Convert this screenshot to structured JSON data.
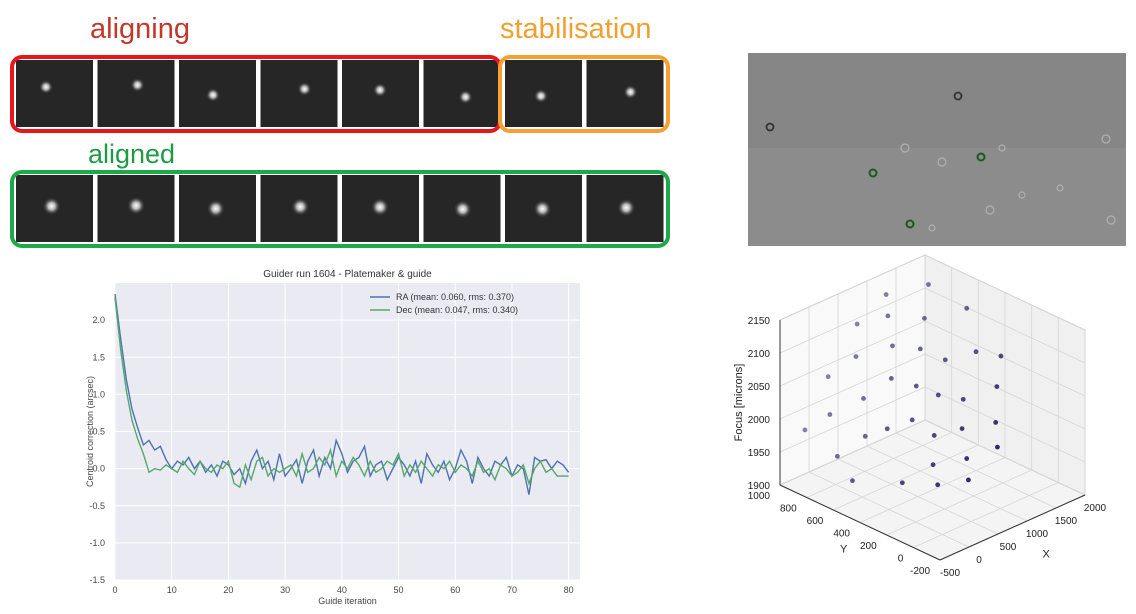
{
  "annotations": [
    "aligning",
    "stabilisation",
    "aligned"
  ],
  "chart_data": [
    {
      "type": "line",
      "title": "Guider run 1604 - Platemaker & guide",
      "xlabel": "Guide iteration",
      "ylabel": "Centroid correction (arcsec)",
      "x": [
        0,
        1,
        2,
        3,
        4,
        5,
        6,
        7,
        8,
        9,
        10,
        11,
        12,
        13,
        14,
        15,
        16,
        17,
        18,
        19,
        20,
        21,
        22,
        23,
        24,
        25,
        26,
        27,
        28,
        29,
        30,
        31,
        32,
        33,
        34,
        35,
        36,
        37,
        38,
        39,
        40,
        41,
        42,
        43,
        44,
        45,
        46,
        47,
        48,
        49,
        50,
        51,
        52,
        53,
        54,
        55,
        56,
        57,
        58,
        59,
        60,
        61,
        62,
        63,
        64,
        65,
        66,
        67,
        68,
        69,
        70,
        71,
        72,
        73,
        74,
        75,
        76,
        77,
        78,
        79,
        80
      ],
      "series": [
        {
          "name": "RA (mean: 0.060, rms: 0.370)",
          "color": "#4c72b0",
          "values": [
            2.35,
            1.75,
            1.2,
            0.8,
            0.55,
            0.32,
            0.38,
            0.25,
            0.3,
            0.12,
            0.0,
            0.1,
            0.05,
            0.15,
            0.0,
            0.1,
            -0.05,
            0.05,
            -0.1,
            0.1,
            0.05,
            -0.08,
            0.0,
            -0.2,
            0.1,
            0.25,
            0.0,
            0.1,
            -0.15,
            0.2,
            -0.1,
            0.0,
            0.12,
            -0.2,
            0.1,
            0.25,
            -0.1,
            0.15,
            0.0,
            0.38,
            0.2,
            -0.05,
            0.1,
            0.15,
            0.3,
            -0.1,
            0.05,
            0.1,
            -0.15,
            0.0,
            0.15,
            0.05,
            -0.1,
            0.1,
            -0.2,
            0.2,
            0.05,
            -0.05,
            0.1,
            -0.15,
            0.0,
            0.25,
            0.1,
            -0.2,
            0.15,
            0.0,
            -0.1,
            0.1,
            0.05,
            0.15,
            -0.1,
            0.05,
            0.0,
            -0.35,
            0.15,
            0.1,
            0.12,
            0.0,
            0.1,
            0.05,
            -0.05
          ]
        },
        {
          "name": "Dec (mean: 0.047, rms: 0.340)",
          "color": "#55a868",
          "values": [
            2.3,
            1.6,
            1.05,
            0.65,
            0.4,
            0.2,
            -0.05,
            0.0,
            -0.02,
            0.05,
            0.0,
            -0.05,
            0.1,
            0.0,
            -0.08,
            0.1,
            0.0,
            -0.05,
            0.05,
            0.0,
            0.1,
            -0.2,
            -0.25,
            0.05,
            -0.15,
            0.1,
            0.15,
            -0.1,
            0.0,
            -0.05,
            0.0,
            0.05,
            -0.1,
            0.2,
            -0.05,
            0.0,
            0.15,
            0.05,
            0.25,
            -0.1,
            0.1,
            0.0,
            0.15,
            0.05,
            -0.1,
            0.1,
            -0.05,
            0.0,
            0.1,
            0.05,
            0.2,
            -0.1,
            0.05,
            -0.05,
            0.1,
            0.0,
            -0.1,
            0.05,
            0.0,
            0.1,
            -0.05,
            0.05,
            0.0,
            -0.1,
            0.1,
            -0.05,
            0.0,
            -0.15,
            0.05,
            0.0,
            -0.1,
            -0.05,
            0.05,
            -0.2,
            0.0,
            0.1,
            -0.05,
            0.0,
            -0.1,
            -0.1,
            -0.1
          ]
        }
      ],
      "xlim": [
        0,
        82
      ],
      "ylim": [
        -1.5,
        2.5
      ],
      "xticks": [
        0,
        10,
        20,
        30,
        40,
        50,
        60,
        70,
        80
      ],
      "yticks": [
        -1.5,
        {
          "value": -1,
          "label": "-1.0"
        },
        -0.5,
        {
          "value": 0,
          "label": "0.0"
        },
        0.5,
        {
          "value": 1,
          "label": "1.0"
        },
        1.5,
        {
          "value": 2,
          "label": "2.0"
        }
      ],
      "grid": true,
      "legend": "upper right"
    },
    {
      "type": "scatter3d",
      "xlabel": "X",
      "ylabel": "Y",
      "zlabel": "Focus [microns]",
      "color": "#1b1b5e",
      "x": [
        -300,
        -200,
        -100,
        0,
        50,
        100,
        150,
        200,
        250,
        300,
        350,
        400,
        450,
        500,
        550,
        600,
        650,
        700,
        750,
        800,
        850,
        900,
        950,
        1000,
        1050,
        1100,
        1150,
        1200,
        1300,
        1400,
        1500,
        1600,
        1700,
        1800,
        -400
      ],
      "y": [
        900,
        700,
        800,
        300,
        600,
        900,
        100,
        500,
        700,
        200,
        800,
        400,
        0,
        600,
        300,
        900,
        100,
        500,
        700,
        200,
        400,
        800,
        0,
        600,
        300,
        900,
        100,
        500,
        700,
        200,
        400,
        800,
        300,
        600,
        500
      ],
      "z": [
        1985,
        1960,
        2010,
        1950,
        1990,
        2050,
        1960,
        2005,
        2030,
        1975,
        2080,
        2020,
        1965,
        2060,
        2000,
        2110,
        1980,
        2050,
        2090,
        2010,
        2040,
        2120,
        1995,
        2085,
        2035,
        2135,
        2015,
        2070,
        2110,
        2050,
        2080,
        2140,
        2075,
        2115,
        1950
      ],
      "xlim": [
        -500,
        2000
      ],
      "ylim": [
        -200,
        1000
      ],
      "zlim": [
        1900,
        2150
      ],
      "xticks": [
        -500,
        0,
        500,
        1000,
        1500,
        2000
      ],
      "yticks": [
        -200,
        0,
        200,
        400,
        600,
        800,
        1000
      ],
      "zticks": [
        1900,
        1950,
        2000,
        2050,
        2100,
        2150
      ]
    }
  ]
}
